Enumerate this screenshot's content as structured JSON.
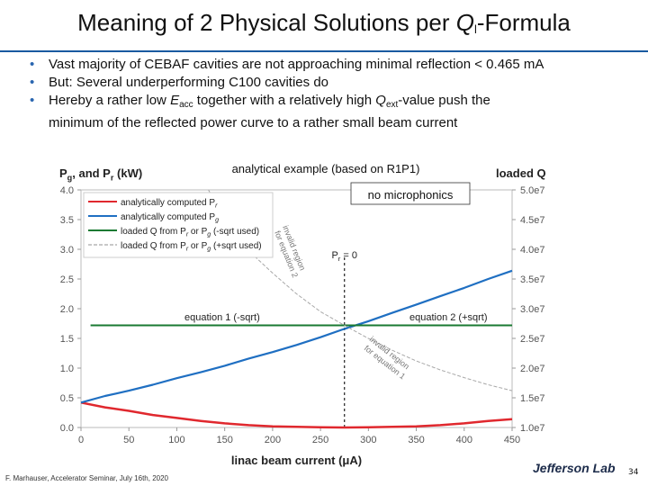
{
  "slide": {
    "title_prefix": "Meaning of 2 Physical Solutions per ",
    "title_q": "Q",
    "title_q_sub": "l",
    "title_suffix": "-Formula",
    "bullets": [
      {
        "parts": [
          {
            "t": "Vast majority of CEBAF cavities are not approaching minimal reflection < 0.465 mA"
          }
        ]
      },
      {
        "parts": [
          {
            "t": "But: Several underperforming C100 cavities do"
          }
        ]
      },
      {
        "parts": [
          {
            "t": "Hereby a rather low "
          },
          {
            "t": "E",
            "style": "it"
          },
          {
            "t": "acc",
            "style": "sub"
          },
          {
            "t": " together with a relatively high "
          },
          {
            "t": "Q",
            "style": "it"
          },
          {
            "t": "ext",
            "style": "sub"
          },
          {
            "t": "-value push the"
          }
        ]
      },
      {
        "parts": [
          {
            "t": "minimum of the reflected power curve to a rather small beam current"
          }
        ],
        "continuation": true
      }
    ],
    "footer": "F. Marhauser, Accelerator Seminar, July 16th, 2020",
    "logo": "Jefferson Lab",
    "page_number": "34"
  },
  "colors": {
    "accent_rule": "#1a5aa0",
    "bullet": "#2a66b0",
    "red": "#e0282e",
    "blue": "#1f6fc2",
    "green": "#1a7a32",
    "grey_curve": "#a8a8a8"
  },
  "chart_data": {
    "type": "line",
    "subtitle": "analytical example (based on R1P1)",
    "note": "no microphonics",
    "ylabel_left_main": "P",
    "ylabel_left_sub1": "g",
    "ylabel_left_mid": ", and P",
    "ylabel_left_sub2": "r",
    "ylabel_left_end": " (kW)",
    "ylabel_right": "loaded Q",
    "xlabel": "linac beam current (μA)",
    "xlim": [
      0,
      450
    ],
    "ylim_left": [
      0,
      4.0
    ],
    "ylim_right": [
      "1.0e7",
      "5.0e7"
    ],
    "x_ticks": [
      "0",
      "50",
      "100",
      "150",
      "200",
      "250",
      "300",
      "350",
      "400",
      "450"
    ],
    "y_ticks_left": [
      "0.0",
      "0.5",
      "1.0",
      "1.5",
      "2.0",
      "2.5",
      "3.0",
      "3.5",
      "4.0"
    ],
    "y_ticks_right": [
      "1.0e7",
      "1.5e7",
      "2.0e7",
      "2.5e7",
      "3.0e7",
      "3.5e7",
      "4.0e7",
      "4.5e7",
      "5.0e7"
    ],
    "legend": [
      {
        "text": "analytically computed P",
        "sub": "r",
        "color": "red"
      },
      {
        "text": "analytically computed P",
        "sub": "g",
        "color": "blue"
      },
      {
        "text": "loaded Q from P",
        "sub": "r",
        "tail": " or P",
        "sub2": "g",
        "tail2": " (-sqrt used)",
        "color": "green"
      },
      {
        "text": "loaded Q from P",
        "sub": "r",
        "tail": " or P",
        "sub2": "g",
        "tail2": " (+sqrt used)",
        "color": "grey_curve"
      }
    ],
    "annotations": {
      "pr_zero": "P",
      "pr_zero_sub": "r",
      "pr_zero_tail": " = 0",
      "eq1": "equation 1 (-sqrt)",
      "eq2": "equation 2 (+sqrt)",
      "region_upper_1": "invalid region",
      "region_upper_2": "for equation 2",
      "region_lower_1": "invalid region",
      "region_lower_2": "for equation 1"
    },
    "pr_zero_x": 275,
    "series": [
      {
        "name": "analytically computed Pr",
        "color": "red",
        "axis": "left",
        "x": [
          0,
          25,
          50,
          75,
          100,
          125,
          150,
          175,
          200,
          225,
          250,
          275,
          300,
          325,
          350,
          375,
          400,
          425,
          450
        ],
        "y": [
          0.42,
          0.34,
          0.28,
          0.21,
          0.16,
          0.11,
          0.07,
          0.04,
          0.02,
          0.01,
          0.003,
          0.0,
          0.003,
          0.01,
          0.02,
          0.04,
          0.07,
          0.11,
          0.14
        ]
      },
      {
        "name": "analytically computed Pg",
        "color": "blue",
        "axis": "left",
        "x": [
          0,
          25,
          50,
          75,
          100,
          125,
          150,
          175,
          200,
          225,
          250,
          275,
          300,
          325,
          350,
          375,
          400,
          425,
          450
        ],
        "y": [
          0.42,
          0.53,
          0.62,
          0.72,
          0.83,
          0.93,
          1.04,
          1.16,
          1.27,
          1.39,
          1.52,
          1.66,
          1.79,
          1.93,
          2.07,
          2.21,
          2.35,
          2.5,
          2.64
        ]
      },
      {
        "name": "loaded Q from Pr or Pg (-sqrt used)",
        "color": "green",
        "axis": "right",
        "x": [
          10,
          450
        ],
        "y": [
          27200000.0,
          27200000.0
        ]
      },
      {
        "name": "loaded Q from Pr or Pg (+sqrt used)",
        "color": "grey_curve",
        "axis": "right",
        "x": [
          133,
          140,
          160,
          180,
          200,
          225,
          250,
          275,
          300,
          325,
          350,
          375,
          400,
          425,
          450
        ],
        "y": [
          50000000.0,
          48000000.0,
          43000000.0,
          39000000.0,
          36000000.0,
          32500000.0,
          29500000.0,
          27200000.0,
          25000000.0,
          23000000.0,
          21200000.0,
          19700000.0,
          18400000.0,
          17200000.0,
          16200000.0
        ]
      }
    ]
  }
}
